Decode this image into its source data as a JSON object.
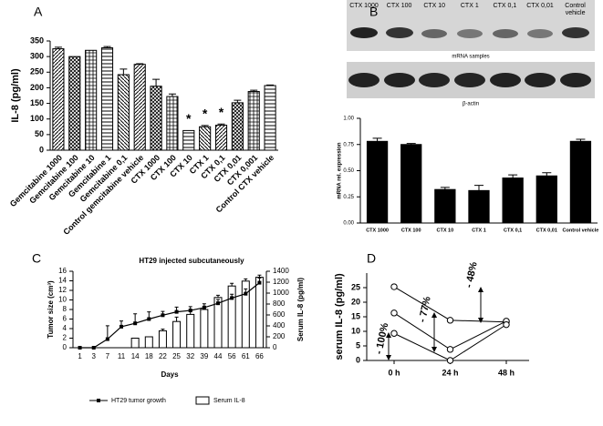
{
  "chart_data": [
    {
      "type": "bar",
      "panel": "A",
      "ylabel": "IL-8 (pg/ml)",
      "categories": [
        "Gemcitabine 1000",
        "Gemcitabine 100",
        "Gemcitabine 10",
        "Gemcitabine 1",
        "Gemcitabine 0,1",
        "Control gemcitabine vehicle",
        "CTX 1000",
        "CTX 100",
        "CTX 10",
        "CTX 1",
        "CTX 0,1",
        "CTX 0,01",
        "CTX 0,001",
        "Control CTX vehicle"
      ],
      "values": [
        325,
        300,
        320,
        328,
        242,
        275,
        205,
        172,
        63,
        75,
        80,
        152,
        188,
        207
      ],
      "errors": [
        5,
        0,
        0,
        4,
        18,
        2,
        22,
        8,
        0,
        4,
        4,
        8,
        4,
        2
      ],
      "color": "#000000",
      "ylim": [
        0,
        350
      ],
      "yticks": [
        0,
        50,
        100,
        150,
        200,
        250,
        300,
        350
      ],
      "annotations": [
        {
          "text": "*",
          "x": "CTX 10"
        },
        {
          "text": "*",
          "x": "CTX 1"
        },
        {
          "text": "*",
          "x": "CTX 0,1"
        }
      ]
    },
    {
      "type": "bar",
      "panel": "B",
      "ylabel": "mRNA rel. expression",
      "blot": {
        "lanes": [
          "CTX 1000",
          "CTX 100",
          "CTX 10",
          "CTX 1",
          "CTX 0,1",
          "CTX 0,01",
          "Control vehicle"
        ],
        "bands": [
          "mRNA samples",
          "β-actin"
        ]
      },
      "categories": [
        "CTX 1000",
        "CTX 100",
        "CTX 10",
        "CTX 1",
        "CTX 0,1",
        "CTX 0,01",
        "Control vehicle"
      ],
      "values": [
        0.78,
        0.75,
        0.32,
        0.31,
        0.43,
        0.45,
        0.78
      ],
      "errors": [
        0.03,
        0.01,
        0.02,
        0.05,
        0.03,
        0.03,
        0.02
      ],
      "color": "#000000",
      "ylim": [
        0,
        1
      ],
      "yticks": [
        {
          "value": 0,
          "label": "0.00"
        },
        {
          "value": 0.25,
          "label": "0.25"
        },
        {
          "value": 0.5,
          "label": "0.50"
        },
        {
          "value": 0.75,
          "label": "0.75"
        },
        {
          "value": 1,
          "label": "1.00"
        }
      ]
    },
    {
      "type": "combo",
      "panel": "C",
      "title": "HT29 injected subcutaneously",
      "xlabel": "Days",
      "ylabel": "Tumor size (cm³)",
      "y2label": "Serum IL-8 (pg/ml)",
      "categories": [
        "1",
        "3",
        "7",
        "11",
        "14",
        "18",
        "22",
        "25",
        "32",
        "39",
        "44",
        "56",
        "61",
        "66"
      ],
      "series": [
        {
          "name": "HT29 tumor growth",
          "type": "line",
          "color": "#000000",
          "values": [
            0,
            0,
            1.8,
            4.4,
            5.1,
            6,
            6.8,
            7.5,
            7.8,
            8.4,
            9.3,
            10.4,
            11.3,
            13.6
          ],
          "errors": [
            0,
            0,
            2.8,
            1.2,
            2,
            1.5,
            0.8,
            1,
            0.8,
            0.8,
            0.8,
            0.8,
            1,
            1
          ]
        },
        {
          "name": "Serum IL-8",
          "type": "bar",
          "axis": "y2",
          "color": "#ffffff",
          "values": [
            0,
            0,
            0,
            0,
            175,
            200,
            310,
            480,
            610,
            700,
            920,
            1130,
            1220,
            1290
          ],
          "errors": [
            0,
            0,
            0,
            0,
            0,
            0,
            30,
            80,
            60,
            60,
            40,
            50,
            40,
            40
          ]
        }
      ],
      "ylim": [
        0,
        16
      ],
      "yticks": [
        0,
        2,
        4,
        6,
        8,
        10,
        12,
        14,
        16
      ],
      "y2lim": [
        0,
        1400
      ],
      "y2ticks": [
        0,
        200,
        400,
        600,
        800,
        1000,
        1200,
        1400
      ],
      "legend": "bottom"
    },
    {
      "type": "line",
      "panel": "D",
      "ylabel": "serum IL-8 (pg/ml)",
      "categories": [
        "0 h",
        "24 h",
        "48 h"
      ],
      "series": [
        {
          "color": "#000000",
          "values": [
            25.3,
            13.8,
            13.2
          ]
        },
        {
          "color": "#000000",
          "values": [
            16.3,
            3.8,
            13.5
          ]
        },
        {
          "color": "#000000",
          "values": [
            9.3,
            0,
            12.3
          ]
        }
      ],
      "ylim": [
        0,
        30
      ],
      "yticks": [
        0,
        5,
        10,
        15,
        20,
        25
      ],
      "annotations": [
        "- 100%",
        "- 77%",
        "- 48%"
      ]
    }
  ]
}
